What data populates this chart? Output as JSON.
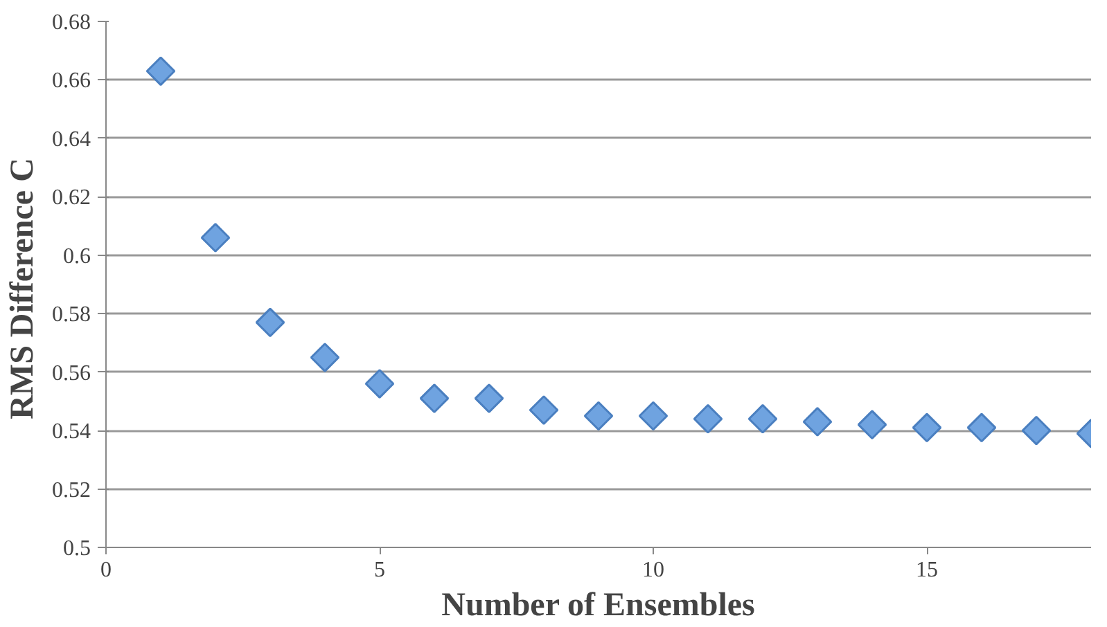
{
  "chart_data": {
    "type": "scatter",
    "xlabel": "Number of Ensembles",
    "ylabel": "RMS Difference  C",
    "x": [
      1,
      2,
      3,
      4,
      5,
      6,
      7,
      8,
      9,
      10,
      11,
      12,
      13,
      14,
      15,
      16,
      17,
      18
    ],
    "series": [
      {
        "color": "#6fa3e0",
        "values": [
          0.663,
          0.606,
          0.577,
          0.565,
          0.556,
          0.551,
          0.551,
          0.547,
          0.545,
          0.545,
          0.544,
          0.544,
          0.543,
          0.542,
          0.541,
          0.541,
          0.54,
          0.539
        ]
      }
    ],
    "xlim": [
      0,
      18
    ],
    "ylim": [
      0.5,
      0.68
    ],
    "xticks": [
      0,
      5,
      10,
      15
    ],
    "yticks": [
      0.5,
      0.52,
      0.54,
      0.56,
      0.58,
      0.6,
      0.62,
      0.64,
      0.66,
      0.68
    ],
    "grid": "y",
    "marker": "diamond"
  }
}
